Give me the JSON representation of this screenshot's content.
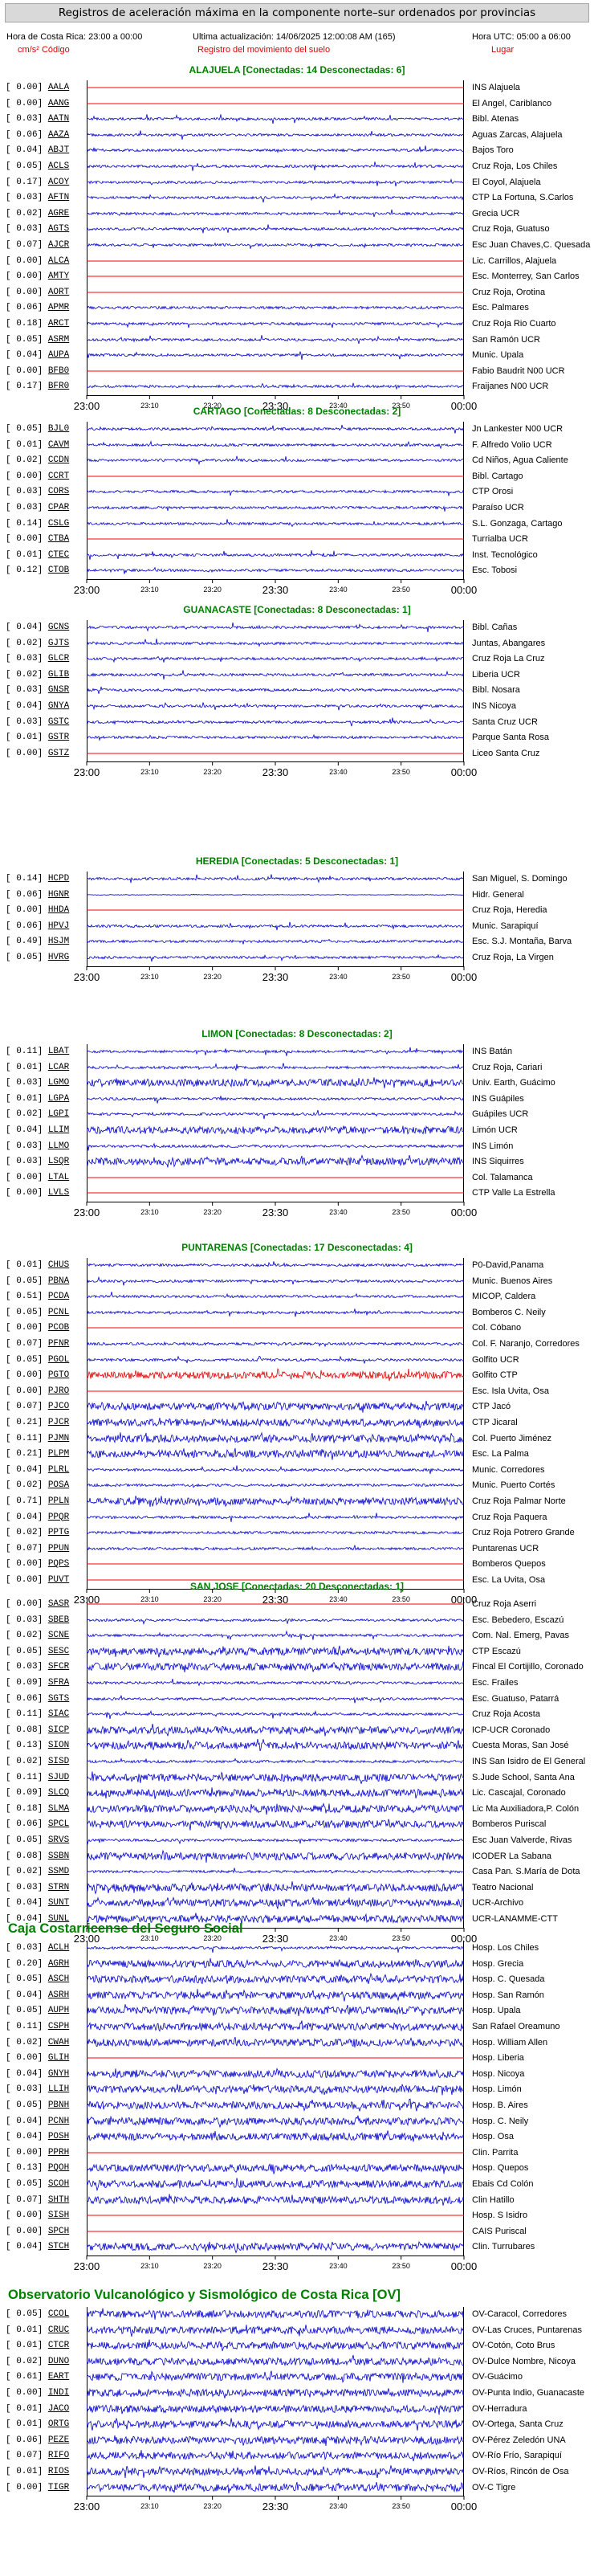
{
  "header": {
    "title": "Registros de aceleración máxima en la componente norte–sur ordenados por provincias",
    "local_time": "Hora de Costa Rica: 23:00 a 00:00",
    "last_update": "Ultima actualización: 14/06/2025 12:00:08 AM (165)",
    "utc_time": "Hora UTC: 05:00 a 06:00",
    "units_code": "cm/s² Código",
    "ground_motion": "Registro del movimiento del suelo",
    "place": "Lugar"
  },
  "time_axis": {
    "labels": [
      "23:00",
      "23:10",
      "23:20",
      "23:30",
      "23:40",
      "23:50",
      "00:00"
    ],
    "big": [
      true,
      false,
      false,
      true,
      false,
      false,
      true
    ]
  },
  "colors": {
    "trace": "#0000cc",
    "disconnected": "#ff0000",
    "highlight": "#dd0000",
    "group_title": "#008000"
  },
  "groups": [
    {
      "kind": "province",
      "title": "ALAJUELA [Conectadas: 14 Desconectadas: 6]",
      "stations": [
        {
          "value": "0.00",
          "code": "AALA",
          "name": "INS Alajuela",
          "status": "off"
        },
        {
          "value": "0.00",
          "code": "AANG",
          "name": "El Angel, Cariblanco",
          "status": "off"
        },
        {
          "value": "0.03",
          "code": "AATN",
          "name": "Bibl. Atenas",
          "status": "on"
        },
        {
          "value": "0.06",
          "code": "AAZA",
          "name": "Aguas Zarcas, Alajuela",
          "status": "on"
        },
        {
          "value": "0.04",
          "code": "ABJT",
          "name": "Bajos Toro",
          "status": "on"
        },
        {
          "value": "0.05",
          "code": "ACLS",
          "name": "Cruz Roja, Los Chiles",
          "status": "on"
        },
        {
          "value": "0.17",
          "code": "ACOY",
          "name": "El Coyol, Alajuela",
          "status": "on"
        },
        {
          "value": "0.03",
          "code": "AFTN",
          "name": "CTP La Fortuna, S.Carlos",
          "status": "on"
        },
        {
          "value": "0.02",
          "code": "AGRE",
          "name": "Grecia UCR",
          "status": "on"
        },
        {
          "value": "0.03",
          "code": "AGTS",
          "name": "Cruz Roja, Guatuso",
          "status": "on"
        },
        {
          "value": "0.07",
          "code": "AJCR",
          "name": "Esc Juan Chaves,C. Quesada",
          "status": "on"
        },
        {
          "value": "0.00",
          "code": "ALCA",
          "name": "Lic. Carrillos, Alajuela",
          "status": "off"
        },
        {
          "value": "0.00",
          "code": "AMTY",
          "name": "Esc. Monterrey, San Carlos",
          "status": "off"
        },
        {
          "value": "0.00",
          "code": "AORT",
          "name": "Cruz Roja, Orotina",
          "status": "off"
        },
        {
          "value": "0.06",
          "code": "APMR",
          "name": "Esc. Palmares",
          "status": "on"
        },
        {
          "value": "0.18",
          "code": "ARCT",
          "name": "Cruz Roja Rio Cuarto",
          "status": "on"
        },
        {
          "value": "0.05",
          "code": "ASRM",
          "name": "San Ramón UCR",
          "status": "on"
        },
        {
          "value": "0.04",
          "code": "AUPA",
          "name": "Munic. Upala",
          "status": "on"
        },
        {
          "value": "0.00",
          "code": "BFB0",
          "name": "Fabio Baudrit N00 UCR",
          "status": "off"
        },
        {
          "value": "0.17",
          "code": "BFR0",
          "name": "Fraijanes N00 UCR",
          "status": "on"
        }
      ]
    },
    {
      "kind": "province",
      "title": "CARTAGO [Conectadas: 8 Desconectadas: 2]",
      "stations": [
        {
          "value": "0.05",
          "code": "BJL0",
          "name": "Jn Lankester N00 UCR",
          "status": "on"
        },
        {
          "value": "0.01",
          "code": "CAVM",
          "name": "F. Alfredo Volio UCR",
          "status": "on"
        },
        {
          "value": "0.02",
          "code": "CCDN",
          "name": "Cd Niños, Agua Caliente",
          "status": "on"
        },
        {
          "value": "0.00",
          "code": "CCRT",
          "name": "Bibl. Cartago",
          "status": "off"
        },
        {
          "value": "0.03",
          "code": "CORS",
          "name": "CTP Orosi",
          "status": "on"
        },
        {
          "value": "0.03",
          "code": "CPAR",
          "name": "Paraíso UCR",
          "status": "on"
        },
        {
          "value": "0.14",
          "code": "CSLG",
          "name": "S.L. Gonzaga, Cartago",
          "status": "on"
        },
        {
          "value": "0.00",
          "code": "CTBA",
          "name": "Turrialba UCR",
          "status": "off"
        },
        {
          "value": "0.01",
          "code": "CTEC",
          "name": "Inst. Tecnológico",
          "status": "on"
        },
        {
          "value": "0.12",
          "code": "CTOB",
          "name": "Esc. Tobosi",
          "status": "on"
        }
      ]
    },
    {
      "kind": "province",
      "title": "GUANACASTE [Conectadas: 8 Desconectadas: 1]",
      "stations": [
        {
          "value": "0.04",
          "code": "GCNS",
          "name": "Bibl. Cañas",
          "status": "on"
        },
        {
          "value": "0.02",
          "code": "GJTS",
          "name": "Juntas, Abangares",
          "status": "on"
        },
        {
          "value": "0.03",
          "code": "GLCR",
          "name": "Cruz Roja La Cruz",
          "status": "on"
        },
        {
          "value": "0.02",
          "code": "GLIB",
          "name": "Liberia UCR",
          "status": "on"
        },
        {
          "value": "0.03",
          "code": "GNSR",
          "name": "Bibl. Nosara",
          "status": "on"
        },
        {
          "value": "0.04",
          "code": "GNYA",
          "name": "INS Nicoya",
          "status": "on"
        },
        {
          "value": "0.03",
          "code": "GSTC",
          "name": "Santa Cruz UCR",
          "status": "on"
        },
        {
          "value": "0.01",
          "code": "GSTR",
          "name": "Parque Santa Rosa",
          "status": "on"
        },
        {
          "value": "0.00",
          "code": "GSTZ",
          "name": "Liceo Santa Cruz",
          "status": "off"
        }
      ]
    },
    {
      "kind": "province",
      "title": "HEREDIA [Conectadas: 5 Desconectadas: 1]",
      "stations": [
        {
          "value": "0.14",
          "code": "HCPD",
          "name": "San Miguel, S. Domingo",
          "status": "on"
        },
        {
          "value": "0.06",
          "code": "HGNR",
          "name": "Hidr. General",
          "status": "flat"
        },
        {
          "value": "0.00",
          "code": "HHDA",
          "name": "Cruz Roja, Heredia",
          "status": "off"
        },
        {
          "value": "0.06",
          "code": "HPVJ",
          "name": "Munic. Sarapiquí",
          "status": "on"
        },
        {
          "value": "0.49",
          "code": "HSJM",
          "name": "Esc. S.J. Montaña, Barva",
          "status": "on"
        },
        {
          "value": "0.05",
          "code": "HVRG",
          "name": "Cruz Roja, La Virgen",
          "status": "on"
        }
      ]
    },
    {
      "kind": "province",
      "title": "LIMON [Conectadas: 8 Desconectadas: 2]",
      "stations": [
        {
          "value": "0.11",
          "code": "LBAT",
          "name": "INS Batán",
          "status": "on"
        },
        {
          "value": "0.01",
          "code": "LCAR",
          "name": "Cruz Roja, Cariari",
          "status": "on"
        },
        {
          "value": "0.03",
          "code": "LGMO",
          "name": "Univ. Earth, Guácimo",
          "status": "heavy"
        },
        {
          "value": "0.01",
          "code": "LGPA",
          "name": "INS Guápiles",
          "status": "on"
        },
        {
          "value": "0.02",
          "code": "LGPI",
          "name": "Guápiles UCR",
          "status": "on"
        },
        {
          "value": "0.04",
          "code": "LLIM",
          "name": "Limón UCR",
          "status": "heavy"
        },
        {
          "value": "0.03",
          "code": "LLMO",
          "name": "INS Limón",
          "status": "on"
        },
        {
          "value": "0.03",
          "code": "LSQR",
          "name": "INS Siquirres",
          "status": "heavy"
        },
        {
          "value": "0.00",
          "code": "LTAL",
          "name": "Col. Talamanca",
          "status": "off"
        },
        {
          "value": "0.00",
          "code": "LVLS",
          "name": "CTP Valle La Estrella",
          "status": "off"
        }
      ]
    },
    {
      "kind": "province",
      "title": "PUNTARENAS [Conectadas: 17 Desconectadas: 4]",
      "stations": [
        {
          "value": "0.01",
          "code": "CHUS",
          "name": "P0-David,Panama",
          "status": "on"
        },
        {
          "value": "0.05",
          "code": "PBNA",
          "name": "Munic. Buenos Aires",
          "status": "on"
        },
        {
          "value": "0.51",
          "code": "PCDA",
          "name": "MICOP, Caldera",
          "status": "on"
        },
        {
          "value": "0.05",
          "code": "PCNL",
          "name": "Bomberos C. Neily",
          "status": "on"
        },
        {
          "value": "0.00",
          "code": "PCOB",
          "name": "Col. Cóbano",
          "status": "off"
        },
        {
          "value": "0.07",
          "code": "PFNR",
          "name": "Col. F. Naranjo, Corredores",
          "status": "on"
        },
        {
          "value": "0.05",
          "code": "PGOL",
          "name": "Golfito UCR",
          "status": "on"
        },
        {
          "value": "0.00",
          "code": "PGTO",
          "name": "Golfito CTP",
          "status": "red"
        },
        {
          "value": "0.00",
          "code": "PJRO",
          "name": "Esc. Isla Uvita, Osa",
          "status": "off"
        },
        {
          "value": "0.07",
          "code": "PJCO",
          "name": "CTP Jacó",
          "status": "heavy"
        },
        {
          "value": "0.21",
          "code": "PJCR",
          "name": "CTP Jicaral",
          "status": "heavy"
        },
        {
          "value": "0.11",
          "code": "PJMN",
          "name": "Col. Puerto Jiménez",
          "status": "heavy"
        },
        {
          "value": "0.21",
          "code": "PLPM",
          "name": "Esc. La Palma",
          "status": "heavy"
        },
        {
          "value": "0.04",
          "code": "PLRL",
          "name": "Munic. Corredores",
          "status": "on"
        },
        {
          "value": "0.02",
          "code": "POSA",
          "name": "Munic. Puerto Cortés",
          "status": "on"
        },
        {
          "value": "0.71",
          "code": "PPLN",
          "name": "Cruz Roja Palmar Norte",
          "status": "heavy"
        },
        {
          "value": "0.04",
          "code": "PPQR",
          "name": "Cruz Roja Paquera",
          "status": "on"
        },
        {
          "value": "0.02",
          "code": "PPTG",
          "name": "Cruz Roja Potrero Grande",
          "status": "on"
        },
        {
          "value": "0.07",
          "code": "PPUN",
          "name": "Puntarenas UCR",
          "status": "on"
        },
        {
          "value": "0.00",
          "code": "PQPS",
          "name": "Bomberos Quepos",
          "status": "off"
        },
        {
          "value": "0.00",
          "code": "PUVT",
          "name": "Esc. La Uvita, Osa",
          "status": "off"
        }
      ]
    },
    {
      "kind": "province",
      "title": "SAN JOSE [Conectadas: 20 Desconectadas: 1]",
      "stations": [
        {
          "value": "0.00",
          "code": "SASR",
          "name": "Cruz Roja Aserri",
          "status": "off"
        },
        {
          "value": "0.03",
          "code": "SBEB",
          "name": "Esc. Bebedero, Escazú",
          "status": "on"
        },
        {
          "value": "0.02",
          "code": "SCNE",
          "name": "Com. Nal. Emerg, Pavas",
          "status": "on"
        },
        {
          "value": "0.05",
          "code": "SESC",
          "name": "CTP Escazú",
          "status": "heavy"
        },
        {
          "value": "0.03",
          "code": "SFCR",
          "name": "Fincal El Cortijillo, Coronado",
          "status": "heavy"
        },
        {
          "value": "0.09",
          "code": "SFRA",
          "name": "Esc. Frailes",
          "status": "on"
        },
        {
          "value": "0.06",
          "code": "SGTS",
          "name": "Esc. Guatuso, Patarrá",
          "status": "on"
        },
        {
          "value": "0.11",
          "code": "SIAC",
          "name": "Cruz Roja Acosta",
          "status": "on"
        },
        {
          "value": "0.08",
          "code": "SICP",
          "name": "ICP-UCR Coronado",
          "status": "heavy"
        },
        {
          "value": "0.13",
          "code": "SION",
          "name": "Cuesta Moras, San José",
          "status": "heavy"
        },
        {
          "value": "0.02",
          "code": "SISD",
          "name": "INS San Isidro de El General",
          "status": "on"
        },
        {
          "value": "0.11",
          "code": "SJUD",
          "name": "S.Jude School, Santa Ana",
          "status": "heavy"
        },
        {
          "value": "0.09",
          "code": "SLCQ",
          "name": "Lic. Cascajal, Coronado",
          "status": "heavy"
        },
        {
          "value": "0.18",
          "code": "SLMA",
          "name": "Lic Ma Auxiliadora,P. Colón",
          "status": "heavy"
        },
        {
          "value": "0.06",
          "code": "SPCL",
          "name": "Bomberos Puriscal",
          "status": "heavy"
        },
        {
          "value": "0.05",
          "code": "SRVS",
          "name": "Esc Juan Valverde, Rivas",
          "status": "on"
        },
        {
          "value": "0.08",
          "code": "SSBN",
          "name": "ICODER La Sabana",
          "status": "heavy"
        },
        {
          "value": "0.02",
          "code": "SSMD",
          "name": "Casa Pan. S.María de Dota",
          "status": "on"
        },
        {
          "value": "0.03",
          "code": "STRN",
          "name": "Teatro Nacional",
          "status": "heavy"
        },
        {
          "value": "0.04",
          "code": "SUNT",
          "name": "UCR-Archivo",
          "status": "heavy"
        },
        {
          "value": "0.04",
          "code": "SUNL",
          "name": "UCR-LANAMME-CTT",
          "status": "heavy"
        }
      ]
    },
    {
      "kind": "institution",
      "title": "Caja Costarricense del Seguro Social",
      "stations": [
        {
          "value": "0.03",
          "code": "ACLH",
          "name": "Hosp. Los Chiles",
          "status": "on"
        },
        {
          "value": "0.20",
          "code": "AGRH",
          "name": "Hosp. Grecia",
          "status": "heavy"
        },
        {
          "value": "0.05",
          "code": "ASCH",
          "name": "Hosp. C. Quesada",
          "status": "heavy"
        },
        {
          "value": "0.04",
          "code": "ASRH",
          "name": "Hosp. San Ramón",
          "status": "heavy"
        },
        {
          "value": "0.05",
          "code": "AUPH",
          "name": "Hosp. Upala",
          "status": "heavy"
        },
        {
          "value": "0.11",
          "code": "CSPH",
          "name": "San Rafael Oreamuno",
          "status": "heavy"
        },
        {
          "value": "0.02",
          "code": "CWAH",
          "name": "Hosp. William Allen",
          "status": "heavy"
        },
        {
          "value": "0.00",
          "code": "GLIH",
          "name": "Hosp. Liberia",
          "status": "off"
        },
        {
          "value": "0.04",
          "code": "GNYH",
          "name": "Hosp. Nicoya",
          "status": "heavy"
        },
        {
          "value": "0.03",
          "code": "LLIH",
          "name": "Hosp. Limón",
          "status": "heavy"
        },
        {
          "value": "0.05",
          "code": "PBNH",
          "name": "Hosp. B. Aires",
          "status": "heavy"
        },
        {
          "value": "0.04",
          "code": "PCNH",
          "name": "Hosp. C. Neily",
          "status": "heavy"
        },
        {
          "value": "0.04",
          "code": "POSH",
          "name": "Hosp. Osa",
          "status": "heavy"
        },
        {
          "value": "0.00",
          "code": "PPRH",
          "name": "Clin. Parrita",
          "status": "off"
        },
        {
          "value": "0.13",
          "code": "PQOH",
          "name": "Hosp. Quepos",
          "status": "heavy"
        },
        {
          "value": "0.05",
          "code": "SCOH",
          "name": "Ebais Cd Colón",
          "status": "heavy"
        },
        {
          "value": "0.07",
          "code": "SHTH",
          "name": "Clin Hatillo",
          "status": "heavy"
        },
        {
          "value": "0.00",
          "code": "SISH",
          "name": "Hosp. S Isidro",
          "status": "off"
        },
        {
          "value": "0.00",
          "code": "SPCH",
          "name": "CAIS Puriscal",
          "status": "off"
        },
        {
          "value": "0.04",
          "code": "STCH",
          "name": "Clin. Turrubares",
          "status": "heavy"
        }
      ]
    },
    {
      "kind": "institution",
      "title": "Observatorio Vulcanológico y Sismológico de Costa Rica [OV]",
      "stations": [
        {
          "value": "0.05",
          "code": "CCOL",
          "name": "OV-Caracol, Corredores",
          "status": "heavy"
        },
        {
          "value": "0.01",
          "code": "CRUC",
          "name": "OV-Las Cruces, Puntarenas",
          "status": "heavy"
        },
        {
          "value": "0.01",
          "code": "CTCR",
          "name": "OV-Cotón, Coto Brus",
          "status": "heavy"
        },
        {
          "value": "0.02",
          "code": "DUNO",
          "name": "OV-Dulce Nombre, Nicoya",
          "status": "heavy"
        },
        {
          "value": "0.61",
          "code": "EART",
          "name": "OV-Guácimo",
          "status": "heavy"
        },
        {
          "value": "0.00",
          "code": "INDI",
          "name": "OV-Punta Indio, Guanacaste",
          "status": "heavy"
        },
        {
          "value": "0.01",
          "code": "JACO",
          "name": "OV-Herradura",
          "status": "heavy"
        },
        {
          "value": "0.01",
          "code": "ORTG",
          "name": "OV-Ortega, Santa Cruz",
          "status": "heavy"
        },
        {
          "value": "0.06",
          "code": "PEZE",
          "name": "OV-Pérez Zeledón UNA",
          "status": "heavy"
        },
        {
          "value": "0.07",
          "code": "RIFO",
          "name": "OV-Río Frío, Sarapiquí",
          "status": "heavy"
        },
        {
          "value": "0.01",
          "code": "RIOS",
          "name": "OV-Ríos, Rincón de Osa",
          "status": "heavy"
        },
        {
          "value": "0.00",
          "code": "TIGR",
          "name": "OV-C Tigre",
          "status": "heavy"
        }
      ]
    }
  ]
}
